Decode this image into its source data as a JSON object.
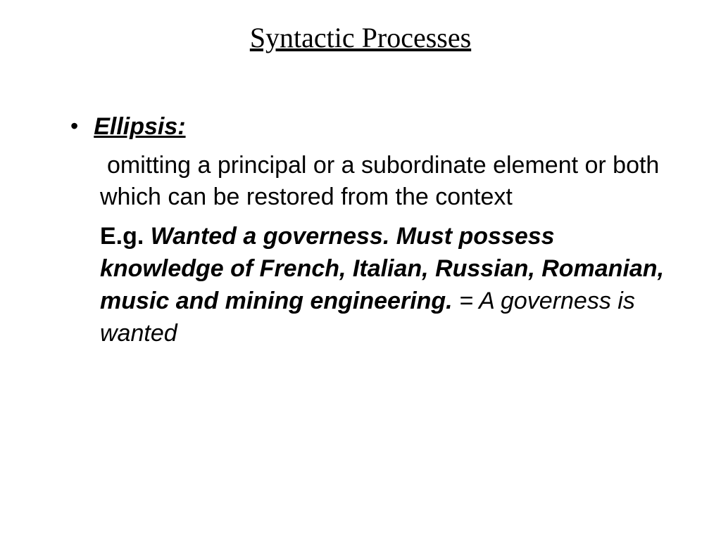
{
  "slide": {
    "title": "Syntactic Processes",
    "term": "Ellipsis:",
    "definition": "omitting a principal or a subordinate element or both which can be restored from the context",
    "example_label": "E.g. ",
    "example_bold": "Wanted a governess. Must possess knowledge of French, Italian, Russian, Romanian, music and mining engineering.",
    "example_rest": " = A governess is wanted"
  },
  "styles": {
    "background_color": "#ffffff",
    "text_color": "#000000",
    "title_fontsize": 40,
    "body_fontsize": 34,
    "title_font": "Times New Roman",
    "body_font": "Arial"
  }
}
